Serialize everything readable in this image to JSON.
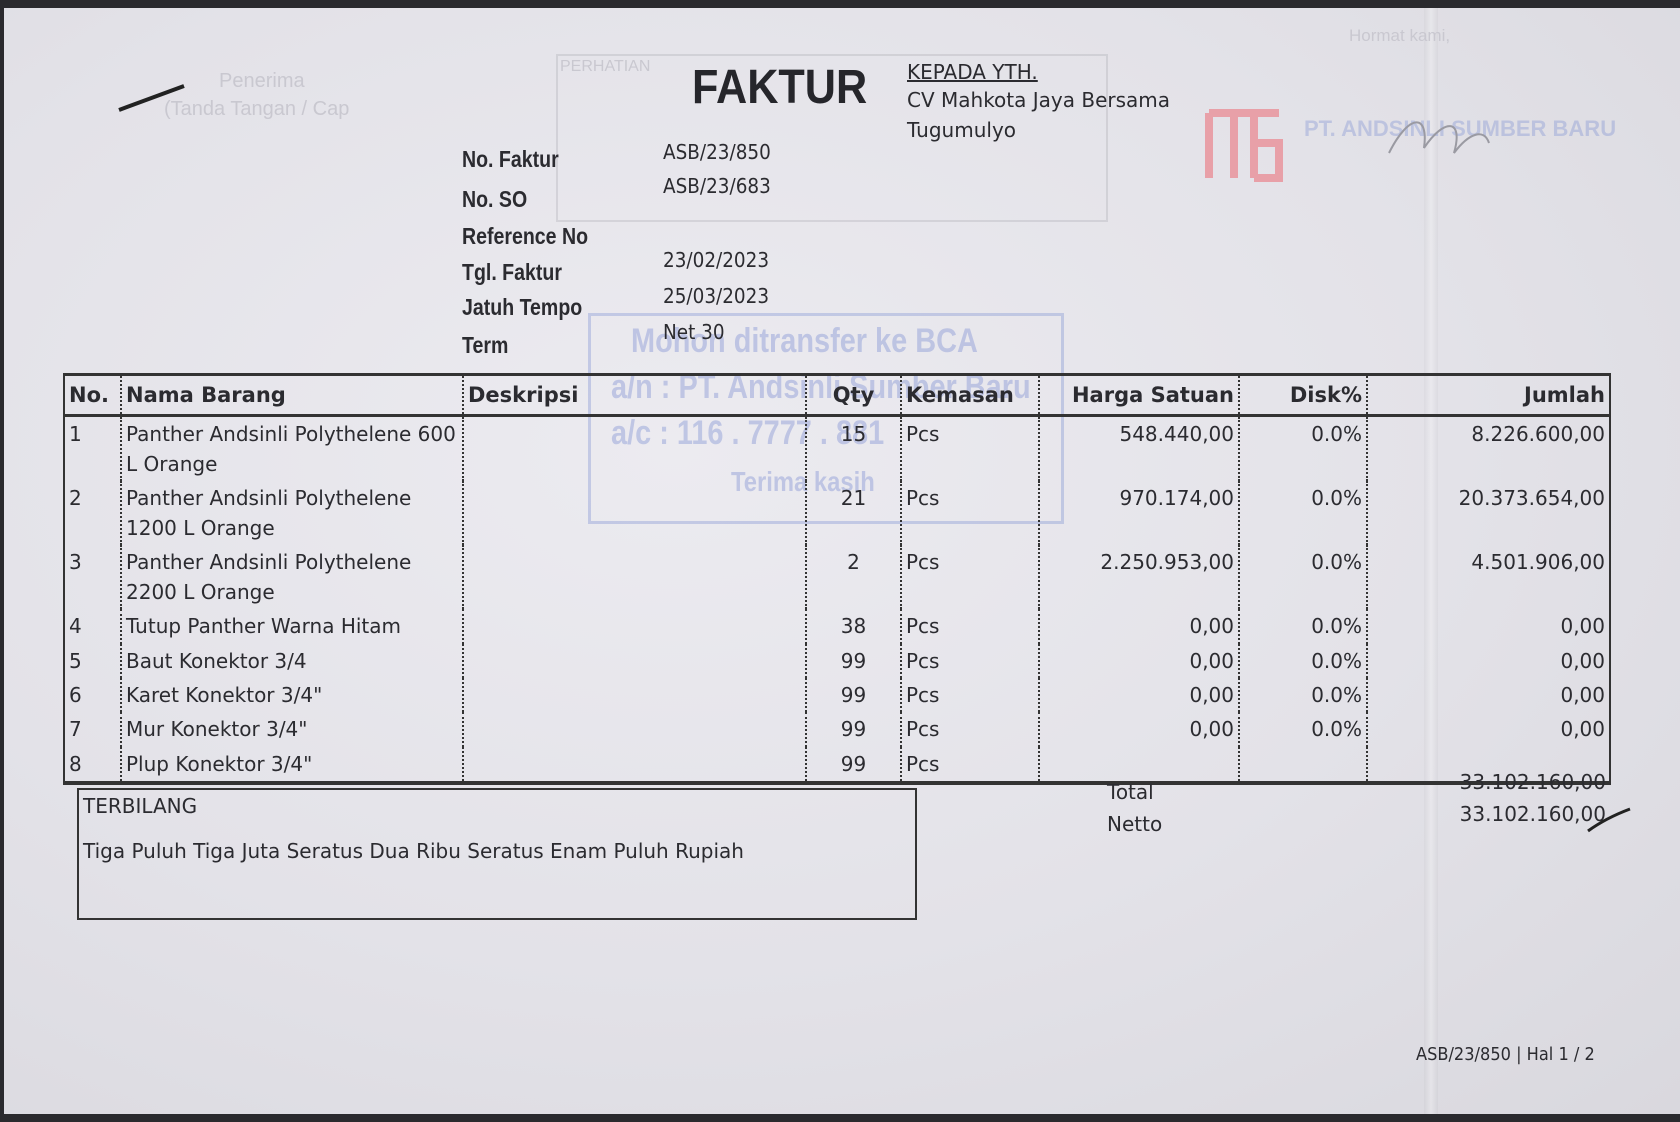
{
  "document": {
    "title": "FAKTUR",
    "recipient": {
      "heading": "KEPADA YTH.",
      "name": "CV Mahkota Jaya Bersama",
      "city": "Tugumulyo"
    },
    "meta": [
      {
        "label": "No. Faktur",
        "value": "ASB/23/850"
      },
      {
        "label": "No. SO",
        "value": "ASB/23/683"
      },
      {
        "label": "Reference No",
        "value": ""
      },
      {
        "label": "Tgl. Faktur",
        "value": "23/02/2023"
      },
      {
        "label": "Jatuh Tempo",
        "value": "25/03/2023"
      },
      {
        "label": "Term",
        "value": "Net 30"
      }
    ],
    "table": {
      "headers": [
        "No.",
        "Nama Barang",
        "Deskripsi",
        "Qty",
        "Kemasan",
        "Harga Satuan",
        "Disk%",
        "Jumlah"
      ],
      "rows": [
        {
          "no": "1",
          "name": "Panther Andsinli Polythelene 600 L Orange",
          "desc": "",
          "qty": "15",
          "unit": "Pcs",
          "price": "548.440,00",
          "disc": "0.0%",
          "amount": "8.226.600,00"
        },
        {
          "no": "2",
          "name": "Panther Andsinli Polythelene 1200 L Orange",
          "desc": "",
          "qty": "21",
          "unit": "Pcs",
          "price": "970.174,00",
          "disc": "0.0%",
          "amount": "20.373.654,00"
        },
        {
          "no": "3",
          "name": "Panther Andsinli Polythelene 2200 L Orange",
          "desc": "",
          "qty": "2",
          "unit": "Pcs",
          "price": "2.250.953,00",
          "disc": "0.0%",
          "amount": "4.501.906,00"
        },
        {
          "no": "4",
          "name": "Tutup Panther Warna Hitam",
          "desc": "",
          "qty": "38",
          "unit": "Pcs",
          "price": "0,00",
          "disc": "0.0%",
          "amount": "0,00"
        },
        {
          "no": "5",
          "name": "Baut Konektor 3/4",
          "desc": "",
          "qty": "99",
          "unit": "Pcs",
          "price": "0,00",
          "disc": "0.0%",
          "amount": "0,00"
        },
        {
          "no": "6",
          "name": "Karet Konektor 3/4\"",
          "desc": "",
          "qty": "99",
          "unit": "Pcs",
          "price": "0,00",
          "disc": "0.0%",
          "amount": "0,00"
        },
        {
          "no": "7",
          "name": "Mur Konektor 3/4\"",
          "desc": "",
          "qty": "99",
          "unit": "Pcs",
          "price": "0,00",
          "disc": "0.0%",
          "amount": "0,00"
        },
        {
          "no": "8",
          "name": "Plup Konektor 3/4\"",
          "desc": "",
          "qty": "99",
          "unit": "Pcs",
          "price": "",
          "disc": "",
          "amount": ""
        }
      ]
    },
    "totals": {
      "total_label": "Total",
      "total_value": "33.102.160,00",
      "netto_label": "Netto",
      "netto_value": "33.102.160,00"
    },
    "terbilang": {
      "heading": "TERBILANG",
      "text": "Tiga Puluh Tiga Juta Seratus Dua Ribu Seratus Enam Puluh Rupiah"
    },
    "footer": "ASB/23/850 | Hal 1 / 2",
    "stamp": {
      "line1": "Mohon ditransfer ke BCA",
      "line2": "a/n : PT. Andsinli Sumber Baru",
      "line3": "a/c : 116 . 7777 . 881",
      "line4": "Terima kasih"
    },
    "show_through": {
      "receiver": "Penerima",
      "receiver_sign": "(Tanda Tangan / Cap",
      "notice": "PERHATIAN",
      "regards": "Hormat kami,",
      "company": "PT. ANDSINLI SUMBER BARU"
    },
    "colors": {
      "ink": "#2b2b30",
      "paper": "#e4e3e9",
      "stamp_blue": "#7082cd",
      "logo_red": "#e8a0a8"
    }
  }
}
